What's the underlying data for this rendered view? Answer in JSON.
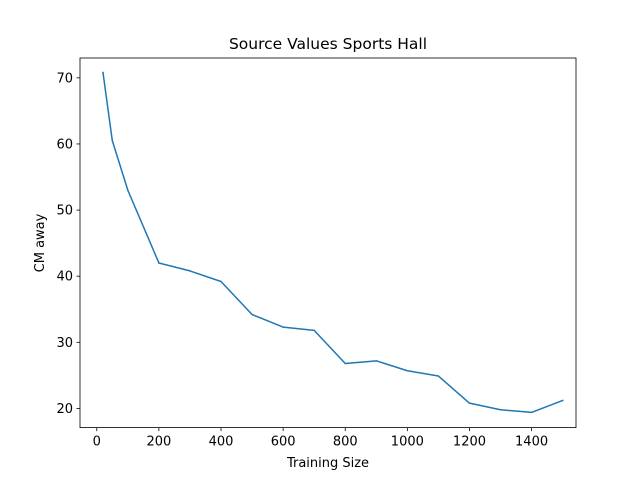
{
  "chart_data": {
    "type": "line",
    "title": "Source Values Sports Hall",
    "xlabel": "Training Size",
    "ylabel": "CM away",
    "xlim": [
      -54,
      1543
    ],
    "ylim": [
      17.1,
      73.0
    ],
    "xticks": [
      0,
      200,
      400,
      600,
      800,
      1000,
      1200,
      1400
    ],
    "yticks": [
      20,
      30,
      40,
      50,
      60,
      70
    ],
    "grid": false,
    "series": [
      {
        "color": "#1f77b4",
        "x": [
          20,
          50,
          100,
          200,
          300,
          400,
          500,
          600,
          700,
          800,
          900,
          1000,
          1100,
          1200,
          1300,
          1400,
          1500
        ],
        "y": [
          70.8,
          60.5,
          53.0,
          42.0,
          40.8,
          39.2,
          34.2,
          32.3,
          31.8,
          26.8,
          27.2,
          25.7,
          24.9,
          20.8,
          19.8,
          19.4,
          21.2
        ]
      }
    ]
  }
}
